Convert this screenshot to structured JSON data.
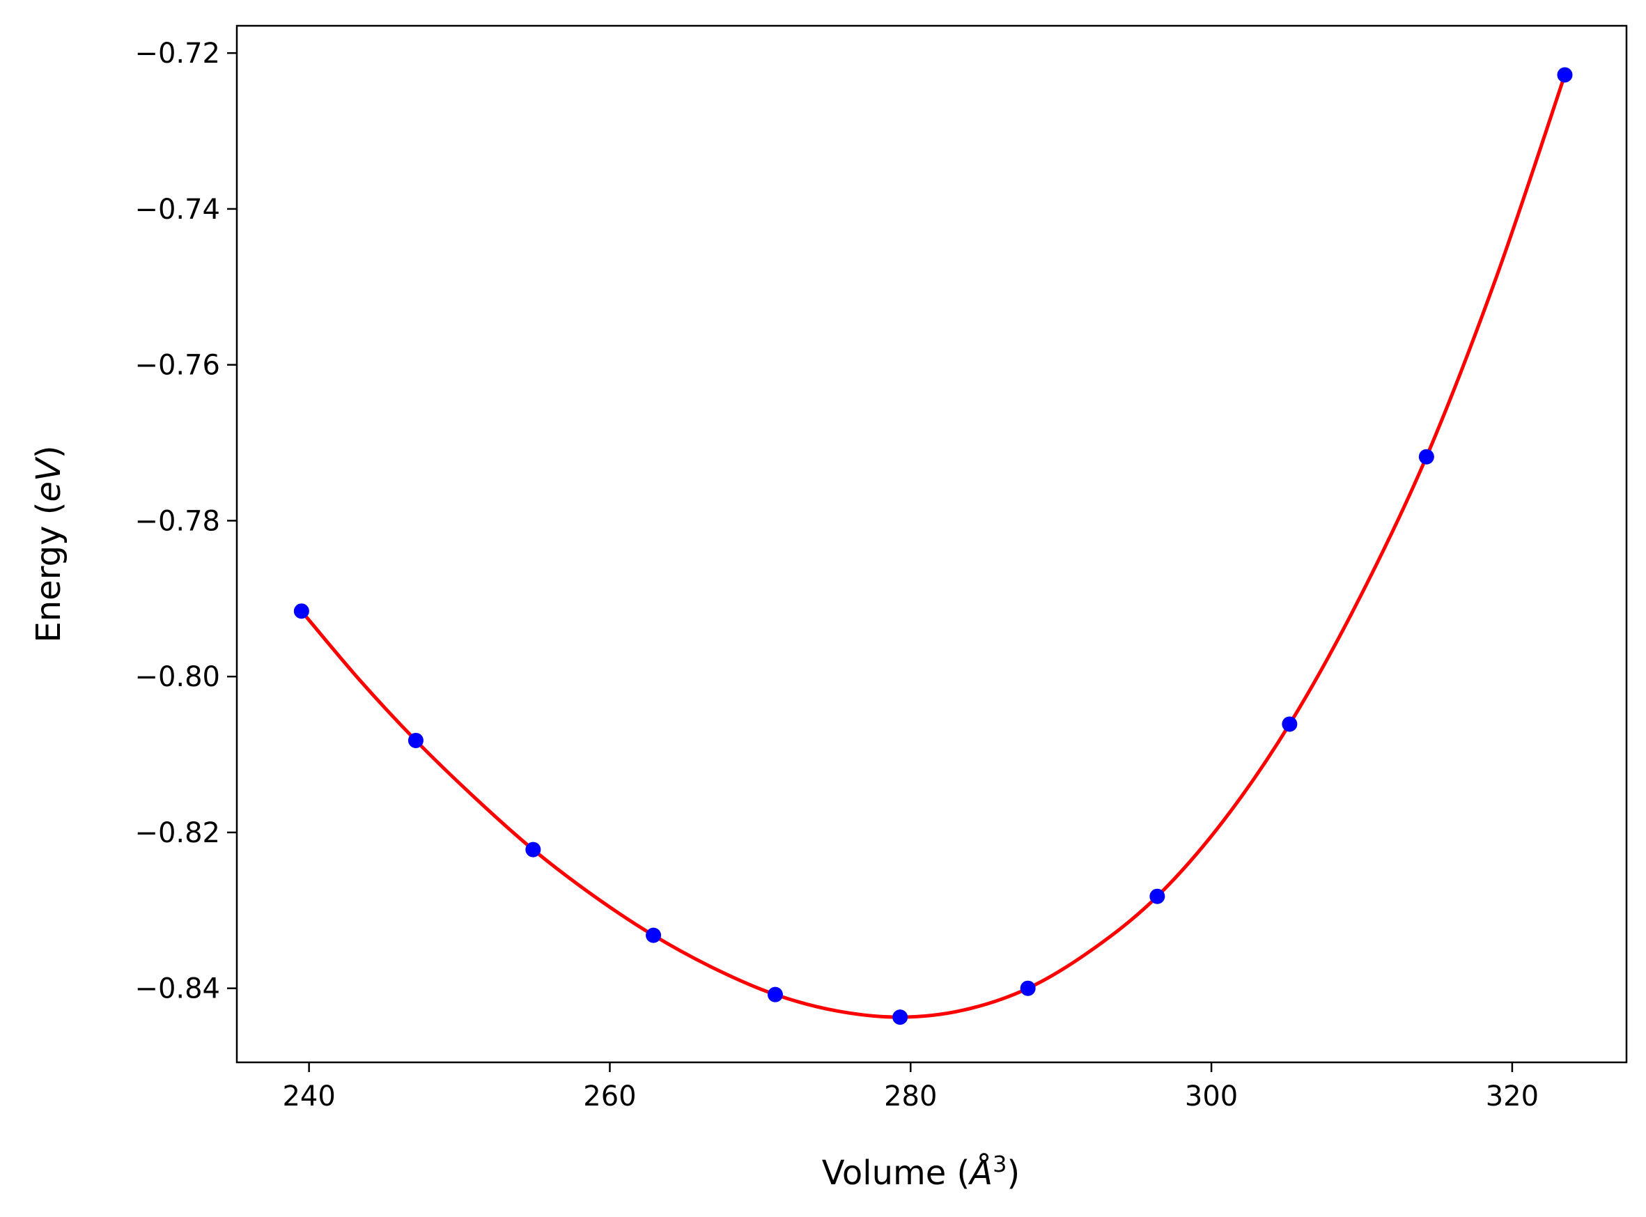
{
  "chart_data": {
    "type": "scatter",
    "xlabel": "Volume",
    "xlabel_unit": "Å",
    "xlabel_unit_exponent": "3",
    "ylabel": "Energy",
    "ylabel_unit": "eV",
    "xlim": [
      235.2,
      327.6
    ],
    "ylim": [
      -0.8495,
      -0.7165
    ],
    "x_ticks": [
      240,
      260,
      280,
      300,
      320
    ],
    "x_tick_labels": [
      "240",
      "260",
      "280",
      "300",
      "320"
    ],
    "y_ticks": [
      -0.84,
      -0.82,
      -0.8,
      -0.78,
      -0.76,
      -0.74,
      -0.72
    ],
    "y_tick_labels": [
      "−0.84",
      "−0.82",
      "−0.80",
      "−0.78",
      "−0.76",
      "−0.74",
      "−0.72"
    ],
    "grid": false,
    "legend": "none",
    "series": [
      {
        "kind": "points",
        "color": "#0000ff",
        "x": [
          239.5,
          247.1,
          254.9,
          262.9,
          271.0,
          279.3,
          287.8,
          296.4,
          305.2,
          314.3,
          323.5
        ],
        "y": [
          -0.7916,
          -0.8082,
          -0.8222,
          -0.8332,
          -0.8408,
          -0.8437,
          -0.84,
          -0.8282,
          -0.8061,
          -0.7718,
          -0.7228
        ]
      },
      {
        "kind": "fit-curve",
        "color": "#ff0000",
        "x": [
          239.5,
          243.3,
          247.1,
          251.0,
          254.9,
          258.9,
          262.9,
          267.0,
          271.0,
          275.1,
          279.3,
          283.5,
          287.8,
          292.1,
          296.4,
          300.8,
          305.2,
          309.7,
          314.3,
          318.9,
          323.5
        ],
        "y": [
          -0.7916,
          -0.8003,
          -0.8082,
          -0.8155,
          -0.8222,
          -0.8281,
          -0.8332,
          -0.8375,
          -0.8408,
          -0.8429,
          -0.8437,
          -0.8428,
          -0.84,
          -0.835,
          -0.8282,
          -0.8185,
          -0.8061,
          -0.7905,
          -0.7718,
          -0.749,
          -0.7228
        ]
      }
    ]
  }
}
